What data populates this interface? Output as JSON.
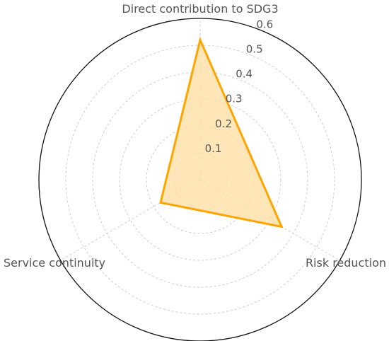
{
  "chart_data": {
    "type": "radar",
    "axes": [
      "Direct contribution to SDG3",
      "Risk reduction",
      "Service continuity"
    ],
    "series": [
      {
        "values": [
          0.52,
          0.35,
          0.17
        ],
        "color": "#FFA500",
        "fill": "#FFE0A8"
      }
    ],
    "rlim": [
      0,
      0.6
    ],
    "ticks": [
      0.1,
      0.2,
      0.3,
      0.4,
      0.5,
      0.6
    ],
    "tick_labels": [
      "0.1",
      "0.2",
      "0.3",
      "0.4",
      "0.5",
      "0.6"
    ],
    "grid": true
  }
}
